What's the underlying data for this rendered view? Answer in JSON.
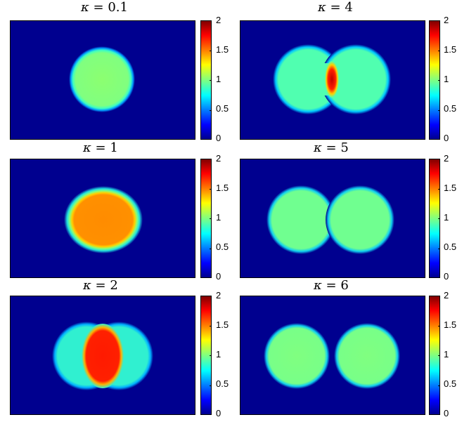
{
  "chart_data": [
    {
      "type": "heatmap",
      "title_sym": "κ",
      "title_rest": " = 0.1",
      "kappa": 0.1,
      "colorbar": {
        "min": 0,
        "max": 2,
        "ticks": [
          "0",
          "0.5",
          "1",
          "1.5",
          "2"
        ],
        "colormap": "jet"
      },
      "description": "single disk, value ≈ 1"
    },
    {
      "type": "heatmap",
      "title_sym": "κ",
      "title_rest": " = 4",
      "kappa": 4,
      "colorbar": {
        "min": 0,
        "max": 2,
        "ticks": [
          "0",
          "0.5",
          "1",
          "1.5",
          "2"
        ],
        "colormap": "jet"
      },
      "description": "two touching disks, value ≈ 0.85, narrow overlap ≈ 2"
    },
    {
      "type": "heatmap",
      "title_sym": "κ",
      "title_rest": " = 1",
      "kappa": 1,
      "colorbar": {
        "min": 0,
        "max": 2,
        "ticks": [
          "0",
          "0.5",
          "1",
          "1.5",
          "2"
        ],
        "colormap": "jet"
      },
      "description": "single disk, center ≈ 1.6"
    },
    {
      "type": "heatmap",
      "title_sym": "κ",
      "title_rest": " = 5",
      "kappa": 5,
      "colorbar": {
        "min": 0,
        "max": 2,
        "ticks": [
          "0",
          "0.5",
          "1",
          "1.5",
          "2"
        ],
        "colormap": "jet"
      },
      "description": "two touching disks, value ≈ 0.9"
    },
    {
      "type": "heatmap",
      "title_sym": "κ",
      "title_rest": " = 2",
      "kappa": 2,
      "colorbar": {
        "min": 0,
        "max": 2,
        "ticks": [
          "0",
          "0.5",
          "1",
          "1.5",
          "2"
        ],
        "colormap": "jet"
      },
      "description": "two overlapping disks, value ≈ 0.75, overlap ≈ 1.9"
    },
    {
      "type": "heatmap",
      "title_sym": "κ",
      "title_rest": " = 6",
      "kappa": 6,
      "colorbar": {
        "min": 0,
        "max": 2,
        "ticks": [
          "0",
          "0.5",
          "1",
          "1.5",
          "2"
        ],
        "colormap": "jet"
      },
      "description": "two separated disks, value ≈ 0.95"
    }
  ],
  "colors": {
    "background": "#00008f",
    "green": "#80ff80",
    "cyan": "#40ffc0",
    "orange": "#ff8c00",
    "red": "#ff1a00"
  }
}
